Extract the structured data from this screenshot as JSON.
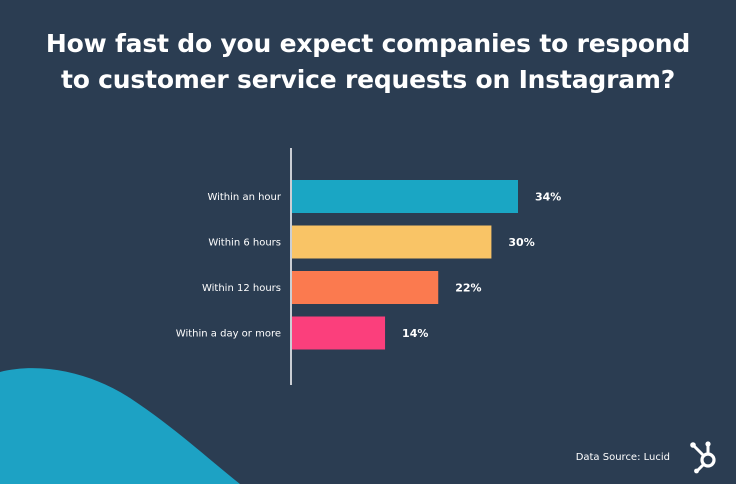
{
  "title": {
    "line1": "How fast do you expect companies to respond",
    "line2": "to customer service requests on Instagram?"
  },
  "source": "Data Source: Lucid",
  "colors": {
    "background": "#2b3d52",
    "wave": "#1da2c4"
  },
  "chart_data": {
    "type": "bar",
    "orientation": "horizontal",
    "title": "How fast do you expect companies to respond to customer service requests on Instagram?",
    "categories": [
      "Within an hour",
      "Within 6 hours",
      "Within 12 hours",
      "Within a day or more"
    ],
    "values": [
      34,
      30,
      22,
      14
    ],
    "value_labels": [
      "34%",
      "30%",
      "22%",
      "14%"
    ],
    "unit": "%",
    "colors": [
      "#1aa6c4",
      "#f9c466",
      "#fb7a4f",
      "#fb3f7c"
    ],
    "xlim": [
      0,
      34
    ],
    "grid": false,
    "legend": "none"
  }
}
